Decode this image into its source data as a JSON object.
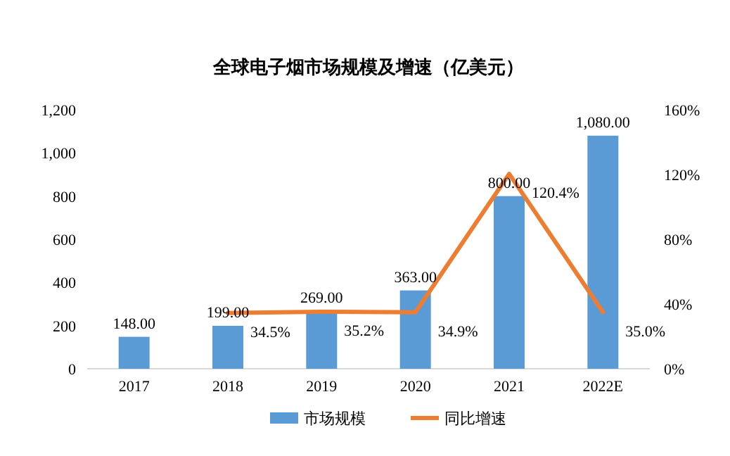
{
  "chart_data": {
    "type": "bar",
    "title": "全球电子烟市场规模及增速（亿美元）",
    "categories": [
      "2017",
      "2018",
      "2019",
      "2020",
      "2021",
      "2022E"
    ],
    "series": [
      {
        "name": "市场规模",
        "color": "#5b9bd5",
        "values": [
          148,
          199,
          269,
          363,
          800,
          1080
        ],
        "value_labels": [
          "148.00",
          "199.00",
          "269.00",
          "363.00",
          "800.00",
          "1,080.00"
        ]
      },
      {
        "name": "同比增速",
        "type": "line",
        "axis": "y2",
        "color": "#ed7d31",
        "values": [
          null,
          34.5,
          35.2,
          34.9,
          120.4,
          35.0
        ],
        "value_labels": [
          null,
          "34.5%",
          "35.2%",
          "34.9%",
          "120.4%",
          "35.0%"
        ]
      }
    ],
    "ylim": [
      0,
      1200
    ],
    "yticks": [
      0,
      {
        "value": 200,
        "label": "200"
      },
      {
        "value": 400,
        "label": "400"
      },
      {
        "value": 600,
        "label": "600"
      },
      {
        "value": 800,
        "label": "800"
      },
      {
        "value": 1000,
        "label": "1,000"
      },
      {
        "value": 1200,
        "label": "1,200"
      }
    ],
    "y2lim": [
      0,
      160
    ],
    "y2ticks": [
      {
        "value": 0,
        "label": "0%"
      },
      {
        "value": 40,
        "label": "40%"
      },
      {
        "value": 80,
        "label": "80%"
      },
      {
        "value": 120,
        "label": "120%"
      },
      {
        "value": 160,
        "label": "160%"
      }
    ],
    "legend": "bottom",
    "grid": false,
    "marker": "none",
    "line_style": "solid"
  }
}
